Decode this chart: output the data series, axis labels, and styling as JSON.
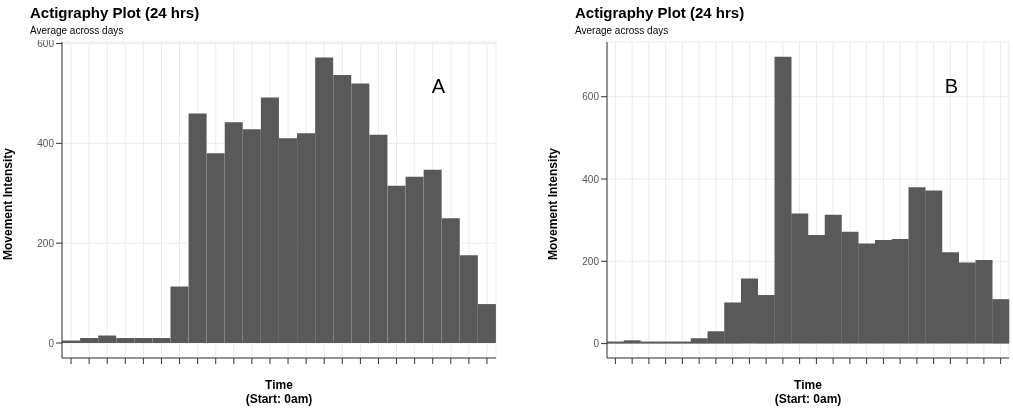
{
  "chart_data": [
    {
      "type": "bar",
      "title": "Actigraphy Plot (24 hrs)",
      "subtitle": "Average across days",
      "xlabel": "Time\n(Start: 0am)",
      "ylabel": "Movement Intensity",
      "annotations": [
        "A"
      ],
      "categories": [
        null,
        null,
        null,
        null,
        null,
        null,
        null,
        null,
        null,
        null,
        null,
        null,
        null,
        null,
        null,
        null,
        null,
        null,
        null,
        null,
        null,
        null,
        null,
        null
      ],
      "values": [
        5,
        10,
        15,
        10,
        10,
        10,
        113,
        460,
        380,
        442,
        428,
        492,
        410,
        420,
        572,
        537,
        520,
        417,
        315,
        333,
        347,
        250,
        176,
        78
      ],
      "color": "#595959",
      "ylim": [
        -30,
        603
      ],
      "yticks": [
        0,
        200,
        400,
        600
      ],
      "grid": true,
      "tick_labels": "y"
    },
    {
      "type": "bar",
      "title": "Actigraphy Plot (24 hrs)",
      "subtitle": "Average across days",
      "xlabel": "Time\n(Start: 0am)",
      "ylabel": "Movement Intensity",
      "annotations": [
        "B"
      ],
      "categories": [
        null,
        null,
        null,
        null,
        null,
        null,
        null,
        null,
        null,
        null,
        null,
        null,
        null,
        null,
        null,
        null,
        null,
        null,
        null,
        null,
        null,
        null,
        null,
        null
      ],
      "values": [
        5,
        8,
        5,
        5,
        5,
        13,
        30,
        100,
        158,
        118,
        697,
        316,
        264,
        313,
        272,
        243,
        252,
        254,
        380,
        372,
        222,
        197,
        203,
        108
      ],
      "color": "#595959",
      "ylim": [
        -35,
        733
      ],
      "yticks": [
        0,
        200,
        400,
        600
      ],
      "grid": true,
      "tick_labels": "y"
    }
  ]
}
